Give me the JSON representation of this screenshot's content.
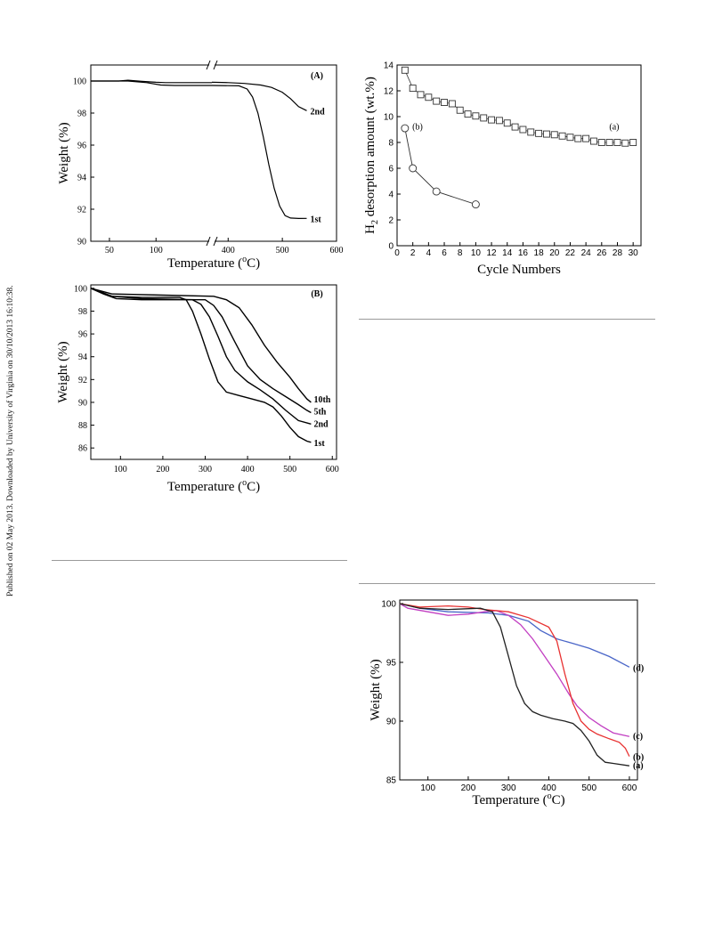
{
  "side_note": "Published on 02 May 2013. Downloaded by University of Virginia on 30/10/2013 16:10:38.",
  "chart_data": [
    {
      "id": "A",
      "type": "line",
      "panel_label": "(A)",
      "xlabel": "Temperature (°C)",
      "ylabel": "Weight (%)",
      "axis_break": true,
      "x_segments": [
        [
          30,
          160
        ],
        [
          370,
          600
        ]
      ],
      "xticks_left": [
        50,
        100
      ],
      "xticks_right": [
        400,
        500,
        600
      ],
      "ylim": [
        90,
        101
      ],
      "yticks": [
        90,
        92,
        94,
        96,
        98,
        100
      ],
      "series": [
        {
          "name": "2nd",
          "color": "#000000",
          "points": [
            [
              30,
              100
            ],
            [
              60,
              100
            ],
            [
              70,
              100.05
            ],
            [
              85,
              99.98
            ],
            [
              100,
              99.92
            ],
            [
              110,
              99.9
            ],
            [
              120,
              99.9
            ],
            [
              160,
              99.9
            ],
            [
              370,
              99.92
            ],
            [
              400,
              99.9
            ],
            [
              430,
              99.85
            ],
            [
              460,
              99.75
            ],
            [
              480,
              99.6
            ],
            [
              500,
              99.3
            ],
            [
              515,
              98.9
            ],
            [
              530,
              98.4
            ],
            [
              545,
              98.15
            ]
          ]
        },
        {
          "name": "1st",
          "color": "#000000",
          "points": [
            [
              30,
              100
            ],
            [
              70,
              100
            ],
            [
              90,
              99.9
            ],
            [
              105,
              99.75
            ],
            [
              120,
              99.72
            ],
            [
              160,
              99.72
            ],
            [
              370,
              99.72
            ],
            [
              420,
              99.7
            ],
            [
              435,
              99.5
            ],
            [
              445,
              99.0
            ],
            [
              455,
              98.0
            ],
            [
              465,
              96.5
            ],
            [
              475,
              94.8
            ],
            [
              485,
              93.3
            ],
            [
              495,
              92.2
            ],
            [
              505,
              91.6
            ],
            [
              515,
              91.45
            ],
            [
              530,
              91.42
            ],
            [
              545,
              91.43
            ]
          ]
        }
      ]
    },
    {
      "id": "cycles",
      "type": "scatter",
      "xlabel": "Cycle Numbers",
      "ylabel": "H2 desorption amount (wt.%)",
      "xlim": [
        0,
        31
      ],
      "ylim": [
        0,
        14
      ],
      "xticks": [
        0,
        2,
        4,
        6,
        8,
        10,
        12,
        14,
        16,
        18,
        20,
        22,
        24,
        26,
        28,
        30
      ],
      "yticks": [
        0,
        2,
        4,
        6,
        8,
        10,
        12,
        14
      ],
      "series": [
        {
          "name": "(a)",
          "marker": "square",
          "x": [
            1,
            2,
            3,
            4,
            5,
            6,
            7,
            8,
            9,
            10,
            11,
            12,
            13,
            14,
            15,
            16,
            17,
            18,
            19,
            20,
            21,
            22,
            23,
            24,
            25,
            26,
            27,
            28,
            29,
            30
          ],
          "y": [
            13.6,
            12.2,
            11.7,
            11.5,
            11.2,
            11.1,
            11.0,
            10.5,
            10.2,
            10.05,
            9.9,
            9.75,
            9.7,
            9.5,
            9.2,
            9.0,
            8.8,
            8.7,
            8.65,
            8.6,
            8.5,
            8.4,
            8.3,
            8.3,
            8.1,
            8.0,
            8.0,
            8.0,
            7.95,
            8.0
          ]
        },
        {
          "name": "(b)",
          "marker": "circle",
          "x": [
            1,
            2,
            5,
            10
          ],
          "y": [
            9.1,
            6.0,
            4.2,
            3.2
          ]
        }
      ]
    },
    {
      "id": "B",
      "type": "line",
      "panel_label": "(B)",
      "xlabel": "Temperature (°C)",
      "ylabel": "Weight (%)",
      "xlim": [
        30,
        610
      ],
      "ylim": [
        85,
        100.3
      ],
      "xticks": [
        100,
        200,
        300,
        400,
        500,
        600
      ],
      "yticks": [
        86,
        88,
        90,
        92,
        94,
        96,
        98,
        100
      ],
      "series": [
        {
          "name": "10th",
          "points": [
            [
              30,
              100
            ],
            [
              80,
              99.5
            ],
            [
              200,
              99.4
            ],
            [
              320,
              99.3
            ],
            [
              350,
              99.0
            ],
            [
              380,
              98.3
            ],
            [
              410,
              96.8
            ],
            [
              440,
              95.0
            ],
            [
              470,
              93.5
            ],
            [
              500,
              92.2
            ],
            [
              520,
              91.2
            ],
            [
              540,
              90.3
            ],
            [
              550,
              90.0
            ]
          ]
        },
        {
          "name": "5th",
          "points": [
            [
              30,
              100
            ],
            [
              80,
              99.3
            ],
            [
              150,
              99.1
            ],
            [
              280,
              99.0
            ],
            [
              300,
              99.0
            ],
            [
              320,
              98.5
            ],
            [
              340,
              97.5
            ],
            [
              370,
              95.3
            ],
            [
              400,
              93.2
            ],
            [
              430,
              92.0
            ],
            [
              460,
              91.2
            ],
            [
              490,
              90.5
            ],
            [
              520,
              89.8
            ],
            [
              540,
              89.3
            ],
            [
              550,
              89.1
            ]
          ]
        },
        {
          "name": "2nd",
          "points": [
            [
              30,
              100
            ],
            [
              60,
              99.5
            ],
            [
              90,
              99.1
            ],
            [
              150,
              99.0
            ],
            [
              270,
              99.0
            ],
            [
              290,
              98.6
            ],
            [
              310,
              97.5
            ],
            [
              330,
              95.8
            ],
            [
              350,
              94.0
            ],
            [
              370,
              92.8
            ],
            [
              400,
              91.8
            ],
            [
              430,
              91.1
            ],
            [
              460,
              90.3
            ],
            [
              490,
              89.3
            ],
            [
              520,
              88.4
            ],
            [
              550,
              88.1
            ]
          ]
        },
        {
          "name": "1st",
          "points": [
            [
              30,
              100
            ],
            [
              80,
              99.3
            ],
            [
              150,
              99.2
            ],
            [
              240,
              99.2
            ],
            [
              255,
              99.0
            ],
            [
              270,
              98.0
            ],
            [
              290,
              96.0
            ],
            [
              310,
              93.8
            ],
            [
              330,
              91.8
            ],
            [
              350,
              90.9
            ],
            [
              380,
              90.6
            ],
            [
              410,
              90.3
            ],
            [
              440,
              90.0
            ],
            [
              460,
              89.6
            ],
            [
              480,
              88.8
            ],
            [
              500,
              87.8
            ],
            [
              520,
              87.0
            ],
            [
              540,
              86.6
            ],
            [
              550,
              86.5
            ]
          ]
        }
      ]
    },
    {
      "id": "C",
      "type": "line",
      "xlabel": "Temperature (°C)",
      "ylabel": "Weight (%)",
      "xlim": [
        30,
        620
      ],
      "ylim": [
        85,
        100.3
      ],
      "xticks": [
        100,
        200,
        300,
        400,
        500,
        600
      ],
      "yticks": [
        85,
        90,
        95,
        100
      ],
      "series": [
        {
          "name": "(d)",
          "color": "#4a66c8",
          "points": [
            [
              30,
              100
            ],
            [
              80,
              99.6
            ],
            [
              150,
              99.3
            ],
            [
              250,
              99.2
            ],
            [
              300,
              99.0
            ],
            [
              350,
              98.5
            ],
            [
              380,
              97.7
            ],
            [
              420,
              97.0
            ],
            [
              460,
              96.6
            ],
            [
              500,
              96.2
            ],
            [
              550,
              95.5
            ],
            [
              600,
              94.6
            ]
          ]
        },
        {
          "name": "(c)",
          "color": "#c23fc2",
          "points": [
            [
              30,
              100
            ],
            [
              50,
              99.6
            ],
            [
              100,
              99.3
            ],
            [
              150,
              99.0
            ],
            [
              200,
              99.1
            ],
            [
              240,
              99.3
            ],
            [
              270,
              99.4
            ],
            [
              300,
              99.0
            ],
            [
              330,
              98.2
            ],
            [
              360,
              97.0
            ],
            [
              390,
              95.5
            ],
            [
              420,
              94.0
            ],
            [
              450,
              92.3
            ],
            [
              470,
              91.3
            ],
            [
              500,
              90.3
            ],
            [
              530,
              89.6
            ],
            [
              560,
              89.0
            ],
            [
              600,
              88.7
            ]
          ]
        },
        {
          "name": "(b)",
          "color": "#e83232",
          "points": [
            [
              30,
              100
            ],
            [
              80,
              99.7
            ],
            [
              150,
              99.8
            ],
            [
              200,
              99.7
            ],
            [
              240,
              99.5
            ],
            [
              300,
              99.3
            ],
            [
              350,
              98.8
            ],
            [
              400,
              98.0
            ],
            [
              420,
              96.8
            ],
            [
              440,
              94.0
            ],
            [
              460,
              91.5
            ],
            [
              480,
              90.0
            ],
            [
              500,
              89.3
            ],
            [
              520,
              88.9
            ],
            [
              550,
              88.5
            ],
            [
              575,
              88.2
            ],
            [
              590,
              87.7
            ],
            [
              600,
              87.0
            ]
          ]
        },
        {
          "name": "(a)",
          "color": "#222222",
          "points": [
            [
              30,
              100
            ],
            [
              80,
              99.6
            ],
            [
              150,
              99.5
            ],
            [
              230,
              99.6
            ],
            [
              260,
              99.3
            ],
            [
              280,
              98.0
            ],
            [
              300,
              95.5
            ],
            [
              320,
              93.0
            ],
            [
              340,
              91.5
            ],
            [
              360,
              90.8
            ],
            [
              380,
              90.5
            ],
            [
              410,
              90.2
            ],
            [
              440,
              90.0
            ],
            [
              460,
              89.8
            ],
            [
              480,
              89.2
            ],
            [
              500,
              88.3
            ],
            [
              520,
              87.1
            ],
            [
              540,
              86.5
            ],
            [
              560,
              86.4
            ],
            [
              600,
              86.2
            ]
          ]
        }
      ]
    }
  ]
}
